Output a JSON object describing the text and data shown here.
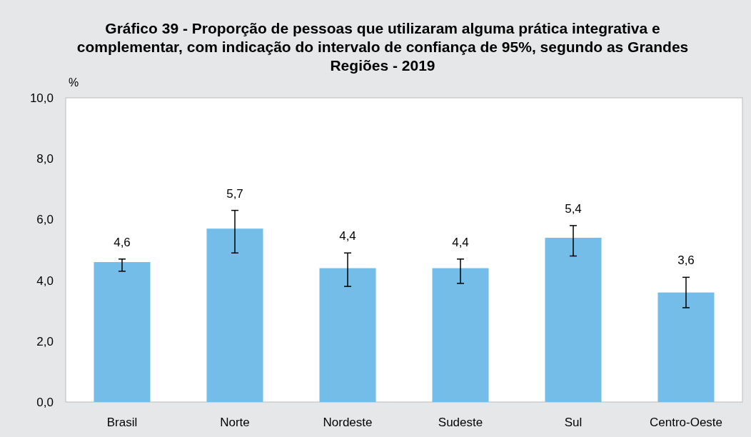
{
  "chart_data": {
    "type": "bar",
    "title": "Gráfico 39 - Proporção de pessoas que utilizaram alguma prática integrativa e complementar, com indicação do intervalo de confiança de 95%, segundo as Grandes Regiões - 2019",
    "ylabel": "%",
    "categories": [
      "Brasil",
      "Norte",
      "Nordeste",
      "Sudeste",
      "Sul",
      "Centro-Oeste"
    ],
    "values": [
      4.6,
      5.7,
      4.4,
      4.4,
      5.4,
      3.6
    ],
    "errors": [
      [
        4.3,
        4.7
      ],
      [
        4.9,
        6.3
      ],
      [
        3.8,
        4.9
      ],
      [
        3.9,
        4.7
      ],
      [
        4.8,
        5.8
      ],
      [
        3.1,
        4.1
      ]
    ],
    "value_labels": [
      "4,6",
      "5,7",
      "4,4",
      "4,4",
      "5,4",
      "3,6"
    ],
    "color": "#74bde8",
    "grid": false,
    "ylim": [
      0,
      10
    ],
    "yticks": [
      {
        "value": 0,
        "label": "0,0"
      },
      {
        "value": 2,
        "label": "2,0"
      },
      {
        "value": 4,
        "label": "4,0"
      },
      {
        "value": 6,
        "label": "6,0"
      },
      {
        "value": 8,
        "label": "8,0"
      },
      {
        "value": 10,
        "label": "10,0"
      }
    ]
  }
}
